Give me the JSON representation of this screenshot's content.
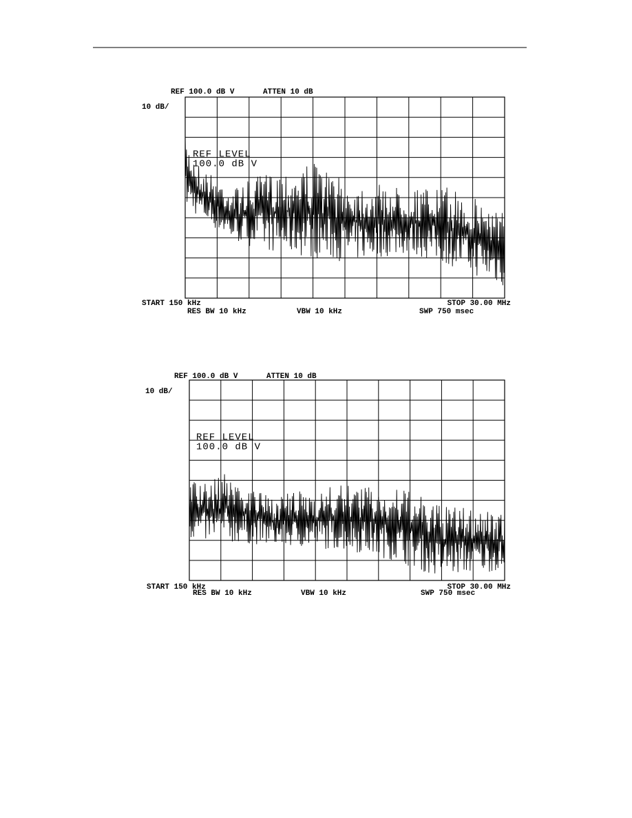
{
  "figures": [
    {
      "ref": "REF 100.0 dB V",
      "atten": "ATTEN 10 dB",
      "scale": "10 dB/",
      "ref_level": "REF LEVEL",
      "ref_value": "100.0 dB V",
      "start": "START 150 kHz",
      "stop": "STOP 30.00 MHz",
      "res_bw": "RES BW 10 kHz",
      "vbw": "VBW 10 kHz",
      "swp": "SWP 750 msec"
    },
    {
      "ref": "REF 100.0 dB V",
      "atten": "ATTEN 10 dB",
      "scale": "10 dB/",
      "ref_level": "REF LEVEL",
      "ref_value": "100.0 dB V",
      "start": "START 150 kHz",
      "stop": "STOP 30.00 MHz",
      "res_bw": "RES BW 10 kHz",
      "vbw": "VBW 10 kHz",
      "swp": "SWP 750 msec"
    }
  ]
}
